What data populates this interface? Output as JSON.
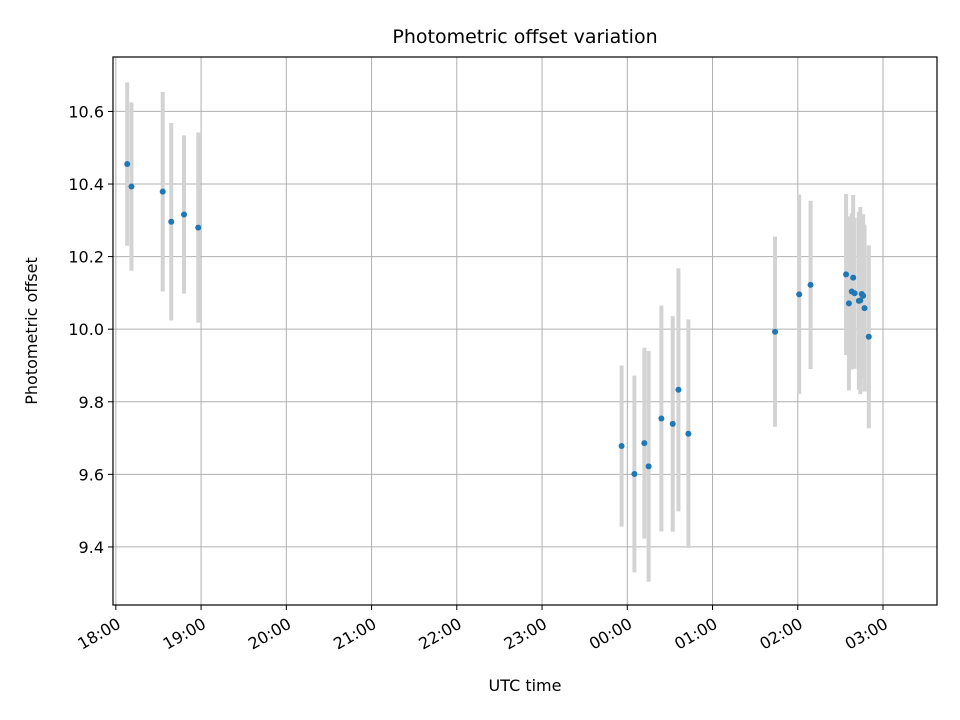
{
  "chart_data": {
    "type": "scatter",
    "title": "Photometric offset variation",
    "xlabel": "UTC time",
    "ylabel": "Photometric offset",
    "x_axis_type": "time",
    "x_tick_labels": [
      "18:00",
      "19:00",
      "20:00",
      "21:00",
      "22:00",
      "23:00",
      "00:00",
      "01:00",
      "02:00",
      "03:00"
    ],
    "xlim": [
      "17:58",
      "03:38"
    ],
    "ylim": [
      9.24,
      10.75
    ],
    "y_ticks": [
      9.4,
      9.6,
      9.8,
      10.0,
      10.2,
      10.4,
      10.6
    ],
    "y_tick_labels": [
      "9.4",
      "9.6",
      "9.8",
      "10.0",
      "10.2",
      "10.4",
      "10.6"
    ],
    "grid": true,
    "point_color": "#1f77b4",
    "errorbar_color": "#d3d3d3",
    "series": [
      {
        "points": [
          {
            "x": "18:08",
            "y": 10.455,
            "err": 0.225
          },
          {
            "x": "18:11",
            "y": 10.393,
            "err": 0.232
          },
          {
            "x": "18:33",
            "y": 10.379,
            "err": 0.275
          },
          {
            "x": "18:39",
            "y": 10.296,
            "err": 0.272
          },
          {
            "x": "18:48",
            "y": 10.316,
            "err": 0.218
          },
          {
            "x": "18:58",
            "y": 10.28,
            "err": 0.262
          },
          {
            "x": "23:56",
            "y": 9.678,
            "err": 0.222
          },
          {
            "x": "00:05",
            "y": 9.601,
            "err": 0.271
          },
          {
            "x": "00:12",
            "y": 9.686,
            "err": 0.263
          },
          {
            "x": "00:15",
            "y": 9.622,
            "err": 0.318
          },
          {
            "x": "00:24",
            "y": 9.754,
            "err": 0.311
          },
          {
            "x": "00:32",
            "y": 9.739,
            "err": 0.297
          },
          {
            "x": "00:36",
            "y": 9.833,
            "err": 0.335
          },
          {
            "x": "00:43",
            "y": 9.712,
            "err": 0.315
          },
          {
            "x": "01:44",
            "y": 9.993,
            "err": 0.262
          },
          {
            "x": "02:01",
            "y": 10.096,
            "err": 0.275
          },
          {
            "x": "02:09",
            "y": 10.122,
            "err": 0.232
          },
          {
            "x": "02:34",
            "y": 10.151,
            "err": 0.222
          },
          {
            "x": "02:36",
            "y": 10.071,
            "err": 0.24
          },
          {
            "x": "02:38",
            "y": 10.104,
            "err": 0.215
          },
          {
            "x": "02:39",
            "y": 10.142,
            "err": 0.228
          },
          {
            "x": "02:40",
            "y": 10.099,
            "err": 0.208
          },
          {
            "x": "02:43",
            "y": 10.078,
            "err": 0.245
          },
          {
            "x": "02:44",
            "y": 10.079,
            "err": 0.258
          },
          {
            "x": "02:45",
            "y": 10.097,
            "err": 0.218
          },
          {
            "x": "02:46",
            "y": 10.092,
            "err": 0.225
          },
          {
            "x": "02:47",
            "y": 10.058,
            "err": 0.23
          },
          {
            "x": "02:50",
            "y": 9.979,
            "err": 0.252
          }
        ]
      }
    ]
  }
}
